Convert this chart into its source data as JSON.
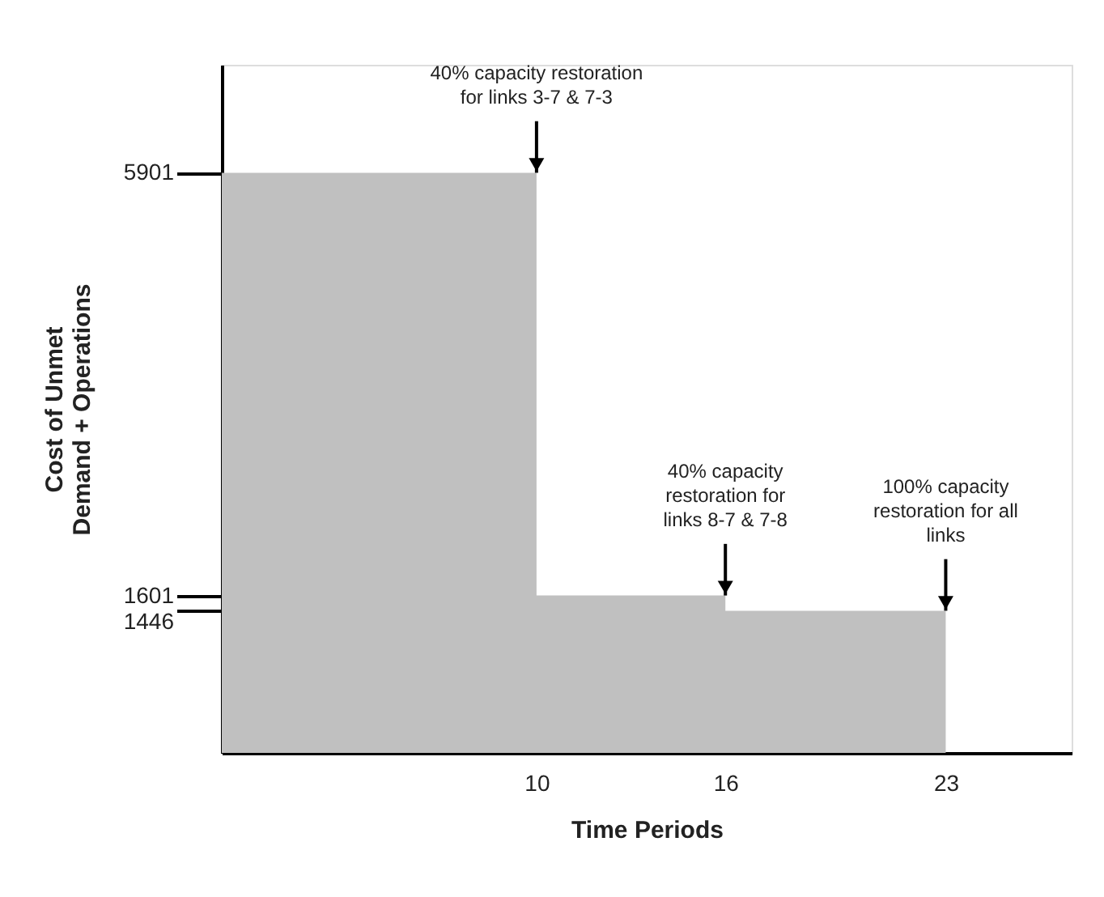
{
  "chart_data": {
    "type": "area",
    "xlabel": "Time Periods",
    "ylabel": "Cost of Unmet\nDemand + Operations",
    "x": [
      0,
      10,
      16,
      23
    ],
    "values": [
      5901,
      1601,
      1446,
      1446
    ],
    "color": "#c0c0c0",
    "xlim": [
      0,
      27
    ],
    "xticks": [
      10,
      16,
      23
    ],
    "ylim": [
      0,
      7000
    ],
    "yticks": [
      1446,
      1601,
      5901
    ],
    "grid": false,
    "annotations": [
      {
        "text": "40% capacity restoration\nfor links 3-7 & 7-3",
        "x": 10,
        "y": 5901
      },
      {
        "text": "40% capacity\nrestoration for\nlinks 8-7 & 7-8",
        "x": 16,
        "y": 1601
      },
      {
        "text": "100% capacity\nrestoration for all\nlinks",
        "x": 23,
        "y": 1446
      }
    ]
  }
}
